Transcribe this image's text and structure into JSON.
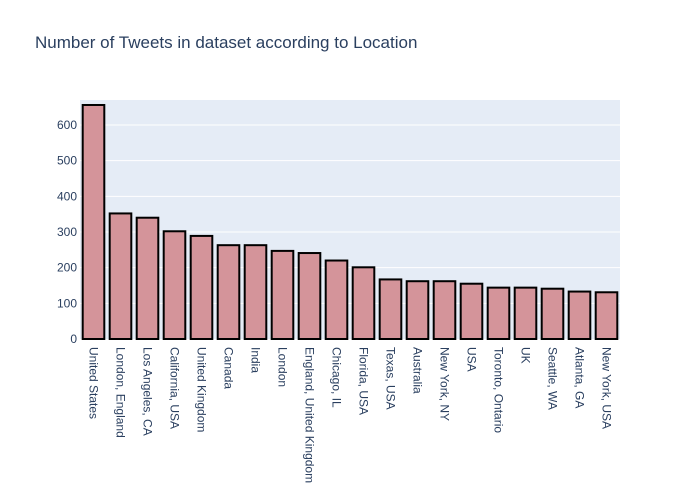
{
  "chart_data": {
    "type": "bar",
    "title": "Number of Tweets in dataset according to Location",
    "xlabel": "",
    "ylabel": "",
    "ylim": [
      0,
      670
    ],
    "yticks": [
      0,
      100,
      200,
      300,
      400,
      500,
      600
    ],
    "grid": true,
    "bar_color": "#d4949a",
    "bar_edge_color": "#000000",
    "plot_bg": "#e5ecf6",
    "grid_color": "#ffffff",
    "categories": [
      "United States",
      "London, England",
      "Los Angeles, CA",
      "California, USA",
      "United Kingdom",
      "Canada",
      "India",
      "London",
      "England, United Kingdom",
      "Chicago, IL",
      "Florida, USA",
      "Texas, USA",
      "Australia",
      "New York, NY",
      "USA",
      "Toronto, Ontario",
      "UK",
      "Seattle, WA",
      "Atlanta, GA",
      "New York, USA"
    ],
    "values": [
      656,
      352,
      340,
      302,
      289,
      263,
      263,
      247,
      241,
      220,
      201,
      167,
      162,
      162,
      155,
      144,
      144,
      141,
      133,
      131
    ]
  }
}
